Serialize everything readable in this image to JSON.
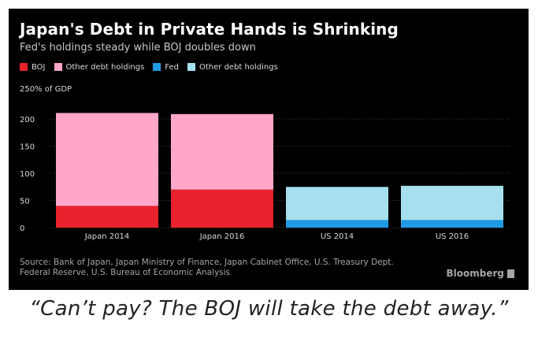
{
  "chart_data": {
    "type": "bar",
    "stacked": true,
    "title": "Japan's Debt in Private Hands is Shrinking",
    "subtitle": "Fed's holdings steady while BOJ doubles down",
    "ylabel": "250% of GDP",
    "categories": [
      "Japan 2014",
      "Japan 2016",
      "US 2014",
      "US 2016"
    ],
    "ylim": [
      0,
      250
    ],
    "yticks": [
      0,
      50,
      100,
      150,
      200
    ],
    "grid": true,
    "legend": [
      {
        "name": "BOJ",
        "color": "#e8222c"
      },
      {
        "name": "Other debt holdings",
        "color": "#ffa6c9"
      },
      {
        "name": "Fed",
        "color": "#1f9be6"
      },
      {
        "name": "Other debt holdings",
        "color": "#a6e0ef"
      }
    ],
    "bars": [
      {
        "category": "Japan 2014",
        "segments": [
          {
            "name": "BOJ",
            "value": 40,
            "color": "#e8222c"
          },
          {
            "name": "Other debt holdings",
            "value": 171,
            "color": "#ffa6c9"
          }
        ]
      },
      {
        "category": "Japan 2016",
        "segments": [
          {
            "name": "BOJ",
            "value": 70,
            "color": "#e8222c"
          },
          {
            "name": "Other debt holdings",
            "value": 139,
            "color": "#ffa6c9"
          }
        ]
      },
      {
        "category": "US 2014",
        "segments": [
          {
            "name": "Fed",
            "value": 14,
            "color": "#1f9be6"
          },
          {
            "name": "Other debt holdings",
            "value": 61,
            "color": "#a6e0ef"
          }
        ]
      },
      {
        "category": "US 2016",
        "segments": [
          {
            "name": "Fed",
            "value": 14,
            "color": "#1f9be6"
          },
          {
            "name": "Other debt holdings",
            "value": 63,
            "color": "#a6e0ef"
          }
        ]
      }
    ]
  },
  "source_line1": "Source: Bank of Japan, Japan Ministry of Finance, Japan Cabinet Office, U.S. Treasury Dept.",
  "source_line2": "Federal Reserve, U.S. Bureau of Economic Analysis",
  "brand": "Bloomberg",
  "caption": "“Can’t pay? The BOJ will take the debt away.”"
}
